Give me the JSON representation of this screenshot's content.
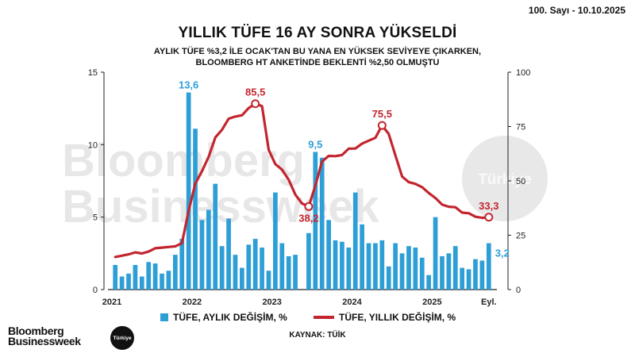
{
  "header": {
    "issue": "100. Sayı - 10.10.2025"
  },
  "branding": {
    "logo_line1": "Bloomberg",
    "logo_line2": "Businessweek",
    "badge": "Türkiye"
  },
  "source": "KAYNAK: TÜİK",
  "colors": {
    "bar": "#2e9fd6",
    "line": "#c3252f",
    "axis": "#222222",
    "bar_label": "#2e9fd6",
    "line_label": "#c3252f"
  },
  "chart_data": {
    "type": "bar+line",
    "title": "YILLIK TÜFE 16 AY SONRA YÜKSELDİ",
    "subtitle_lines": [
      "AYLIK TÜFE %3,2 İLE OCAK'TAN BU YANA EN YÜKSEK SEVİYEYE ÇIKARKEN,",
      "BLOOMBERG HT ANKETİNDE BEKLENTİ %2,50 OLMUŞTU"
    ],
    "x_labels": [
      "2021",
      "2022",
      "2023",
      "2024",
      "2025",
      "Eyl."
    ],
    "left_axis": {
      "ticks": [
        "0",
        "5",
        "10",
        "15"
      ],
      "range": [
        0,
        15
      ]
    },
    "right_axis": {
      "ticks": [
        "0",
        "25",
        "50",
        "75",
        "100"
      ],
      "range": [
        0,
        100
      ]
    },
    "series": [
      {
        "name": "TÜFE, AYLIK DEĞİŞİM, %",
        "type": "bar",
        "axis": "left",
        "values": [
          1.7,
          0.9,
          1.1,
          1.7,
          0.9,
          1.9,
          1.8,
          1.1,
          1.3,
          2.4,
          3.5,
          13.6,
          11.1,
          4.8,
          5.5,
          7.3,
          3.0,
          4.9,
          2.4,
          1.5,
          3.1,
          3.5,
          2.9,
          1.3,
          6.7,
          3.2,
          2.3,
          2.4,
          0.0,
          3.9,
          9.5,
          9.1,
          4.8,
          3.4,
          3.3,
          2.9,
          6.7,
          4.5,
          3.2,
          3.2,
          3.4,
          1.6,
          3.2,
          2.5,
          3.0,
          2.9,
          2.2,
          1.0,
          5.0,
          2.3,
          2.5,
          3.0,
          1.5,
          1.4,
          2.1,
          2.0,
          3.2
        ]
      },
      {
        "name": "TÜFE, YILLIK DEĞİŞİM, %",
        "type": "line",
        "axis": "right",
        "values": [
          15.0,
          15.6,
          16.2,
          17.1,
          16.6,
          17.5,
          19.0,
          19.3,
          19.6,
          19.9,
          21.3,
          36.1,
          48.7,
          54.4,
          61.1,
          70.0,
          73.5,
          78.6,
          79.6,
          80.2,
          83.5,
          85.5,
          84.4,
          64.3,
          57.7,
          55.2,
          50.5,
          43.7,
          39.6,
          38.2,
          47.8,
          58.9,
          61.5,
          61.4,
          61.9,
          64.8,
          64.9,
          67.1,
          68.5,
          69.8,
          75.5,
          71.6,
          61.8,
          52.0,
          49.4,
          48.6,
          47.1,
          44.4,
          42.1,
          39.1,
          38.1,
          37.9,
          35.4,
          35.1,
          33.5,
          33.0,
          33.3
        ]
      }
    ],
    "annotations": [
      {
        "series": "bar",
        "index": 11,
        "label": "13,6"
      },
      {
        "series": "bar",
        "index": 30,
        "label": "9,5"
      },
      {
        "series": "bar",
        "index": 56,
        "label": "3,2"
      },
      {
        "series": "line",
        "index": 21,
        "label": "85,5"
      },
      {
        "series": "line",
        "index": 29,
        "label": "38,2"
      },
      {
        "series": "line",
        "index": 40,
        "label": "75,5"
      },
      {
        "series": "line",
        "index": 56,
        "label": "33,3"
      }
    ],
    "legend_position": "bottom",
    "watermark": {
      "line1": "Bloomberg",
      "line2": "Businessweek",
      "badge": "Türkiye"
    }
  }
}
